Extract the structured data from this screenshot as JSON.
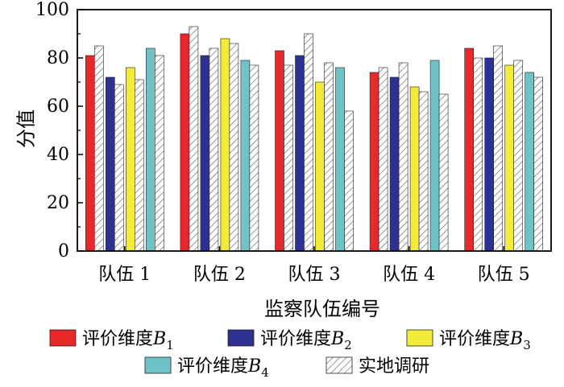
{
  "chart_data": {
    "type": "bar",
    "xlabel": "监察队伍编号",
    "ylabel": "分值",
    "ylim": [
      0,
      100
    ],
    "yticks": [
      0,
      20,
      40,
      60,
      80,
      100
    ],
    "categories": [
      "队伍 1",
      "队伍 2",
      "队伍 3",
      "队伍 4",
      "队伍 5"
    ],
    "grid": false,
    "legend_position": "bottom",
    "series": [
      {
        "name": "评价维度",
        "subscript": "1",
        "color": "#e8282b",
        "hatch": false,
        "values": [
          81,
          90,
          83,
          74,
          84
        ],
        "survey": [
          85,
          93,
          77,
          76,
          80
        ]
      },
      {
        "name": "评价维度",
        "subscript": "2",
        "color": "#2e3192",
        "hatch": false,
        "values": [
          72,
          81,
          81,
          72,
          80
        ],
        "survey": [
          69,
          84,
          90,
          78,
          85
        ]
      },
      {
        "name": "评价维度",
        "subscript": "3",
        "color": "#f2eb3a",
        "hatch": false,
        "values": [
          76,
          88,
          70,
          68,
          77
        ],
        "survey": [
          71,
          86,
          78,
          66,
          79
        ]
      },
      {
        "name": "评价维度",
        "subscript": "4",
        "color": "#6fc3c6",
        "hatch": false,
        "values": [
          84,
          79,
          76,
          79,
          74
        ],
        "survey": [
          81,
          77,
          58,
          65,
          72
        ]
      }
    ],
    "survey_series": {
      "name": "实地调研",
      "hatch": true
    }
  }
}
